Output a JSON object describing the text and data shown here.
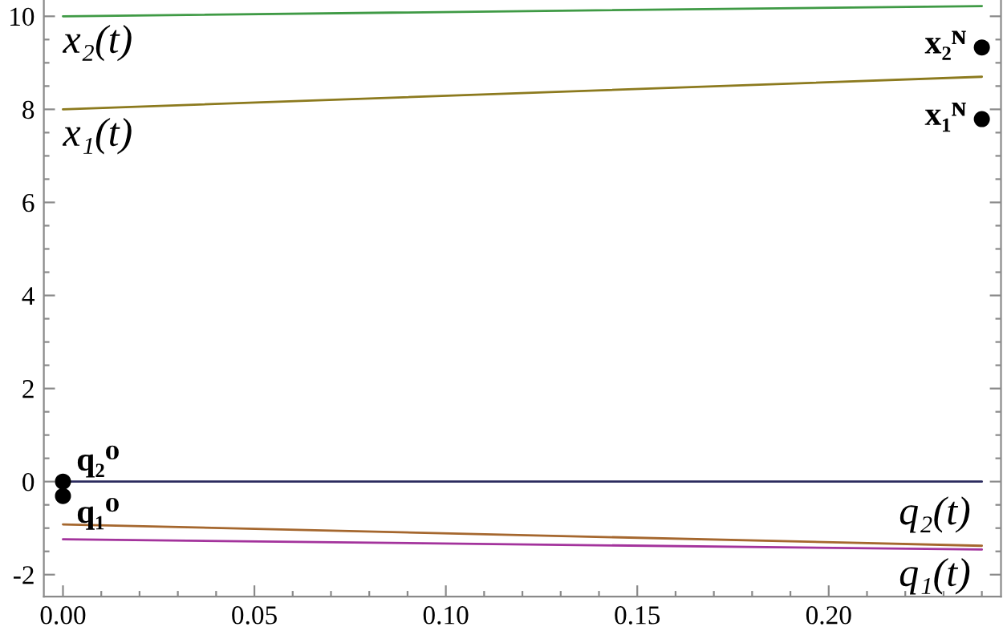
{
  "chart_data": {
    "type": "line",
    "xlim": [
      -0.005,
      0.245
    ],
    "ylim": [
      -2.47,
      10.35
    ],
    "xticks": [
      {
        "value": 0,
        "label": "0.00"
      },
      {
        "value": 0.05,
        "label": "0.05"
      },
      {
        "value": 0.1,
        "label": "0.10"
      },
      {
        "value": 0.15,
        "label": "0.15"
      },
      {
        "value": 0.2,
        "label": "0.20"
      },
      {
        "value": 0.01,
        "label": null
      },
      {
        "value": 0.02,
        "label": null
      },
      {
        "value": 0.03,
        "label": null
      },
      {
        "value": 0.04,
        "label": null
      },
      {
        "value": 0.06,
        "label": null
      },
      {
        "value": 0.07,
        "label": null
      },
      {
        "value": 0.08,
        "label": null
      },
      {
        "value": 0.09,
        "label": null
      },
      {
        "value": 0.11,
        "label": null
      },
      {
        "value": 0.12,
        "label": null
      },
      {
        "value": 0.13,
        "label": null
      },
      {
        "value": 0.14,
        "label": null
      },
      {
        "value": 0.16,
        "label": null
      },
      {
        "value": 0.17,
        "label": null
      },
      {
        "value": 0.18,
        "label": null
      },
      {
        "value": 0.19,
        "label": null
      },
      {
        "value": 0.21,
        "label": null
      },
      {
        "value": 0.22,
        "label": null
      },
      {
        "value": 0.23,
        "label": null
      },
      {
        "value": 0.24,
        "label": null
      }
    ],
    "yticks": [
      -2,
      0,
      2,
      4,
      6,
      8,
      10,
      {
        "value": -1.5,
        "label": null
      },
      {
        "value": -1,
        "label": null
      },
      {
        "value": -0.5,
        "label": null
      },
      {
        "value": 0.5,
        "label": null
      },
      {
        "value": 1,
        "label": null
      },
      {
        "value": 1.5,
        "label": null
      },
      {
        "value": 2.5,
        "label": null
      },
      {
        "value": 3,
        "label": null
      },
      {
        "value": 3.5,
        "label": null
      },
      {
        "value": 4.5,
        "label": null
      },
      {
        "value": 5,
        "label": null
      },
      {
        "value": 5.5,
        "label": null
      },
      {
        "value": 6.5,
        "label": null
      },
      {
        "value": 7,
        "label": null
      },
      {
        "value": 7.5,
        "label": null
      },
      {
        "value": 8.5,
        "label": null
      },
      {
        "value": 9,
        "label": null
      },
      {
        "value": 9.5,
        "label": null
      }
    ],
    "x": [
      0,
      0.24
    ],
    "series": [
      {
        "name": "x₂(t)",
        "color": "#3f9a45",
        "values": [
          10,
          10.22
        ]
      },
      {
        "name": "x₁(t)",
        "color": "#8c7a1e",
        "values": [
          8,
          8.7
        ]
      },
      {
        "color": "#2b2b5e",
        "values": [
          0,
          0
        ]
      },
      {
        "name": "q₂(t)",
        "color": "#a5672e",
        "values": [
          -0.92,
          -1.38
        ]
      },
      {
        "name": "q₁(t)",
        "color": "#a3339c",
        "values": [
          -1.24,
          -1.46
        ]
      },
      {
        "type": "scatter",
        "color": "#000000",
        "values": [
          0,
          9.33
        ],
        "value_labels": [
          "q₂⁰",
          "x₂ᴺ"
        ]
      },
      {
        "type": "scatter",
        "color": "#000000",
        "values": [
          -0.31,
          7.79
        ],
        "value_labels": [
          "q₁⁰",
          "x₁ᴺ"
        ]
      }
    ]
  }
}
